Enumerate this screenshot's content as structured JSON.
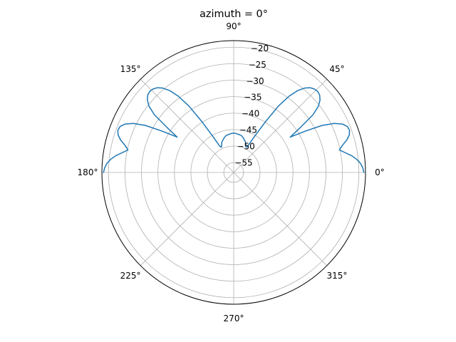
{
  "chart_data": {
    "type": "line",
    "projection": "polar",
    "title": "azimuth = 0°",
    "angle_ticks": [
      {
        "deg": 0,
        "label": "0°"
      },
      {
        "deg": 45,
        "label": "45°"
      },
      {
        "deg": 90,
        "label": "90°"
      },
      {
        "deg": 135,
        "label": "135°"
      },
      {
        "deg": 180,
        "label": "180°"
      },
      {
        "deg": 225,
        "label": "225°"
      },
      {
        "deg": 270,
        "label": "270°"
      },
      {
        "deg": 315,
        "label": "315°"
      }
    ],
    "radial_ticks": [
      {
        "value": -55,
        "label": "−55"
      },
      {
        "value": -50,
        "label": "−50"
      },
      {
        "value": -45,
        "label": "−45"
      },
      {
        "value": -40,
        "label": "−40"
      },
      {
        "value": -35,
        "label": "−35"
      },
      {
        "value": -30,
        "label": "−30"
      },
      {
        "value": -25,
        "label": "−25"
      },
      {
        "value": -20,
        "label": "−20"
      }
    ],
    "rlim": [
      -58,
      -18
    ],
    "theta_range_deg": [
      0,
      180
    ],
    "grid": true,
    "series": [
      {
        "color": "#1f77b4",
        "theta_deg": [
          0,
          2,
          4,
          6,
          8,
          10,
          12,
          14,
          16,
          18,
          20,
          22,
          24,
          26,
          28,
          30,
          32,
          34,
          36,
          38,
          40,
          42,
          44,
          46,
          48,
          50,
          52,
          54,
          56,
          58,
          60,
          62,
          64,
          66,
          68,
          70,
          72,
          74,
          76,
          78,
          80,
          82,
          84,
          86,
          88,
          90,
          92,
          94,
          96,
          98,
          100,
          102,
          104,
          106,
          108,
          110,
          112,
          114,
          116,
          118,
          120,
          122,
          124,
          126,
          128,
          130,
          132,
          134,
          136,
          138,
          140,
          142,
          144,
          146,
          148,
          150,
          152,
          154,
          156,
          158,
          160,
          162,
          164,
          166,
          168,
          170,
          172,
          174,
          176,
          178,
          180
        ],
        "r": [
          -18.5,
          -18.8,
          -19.4,
          -20.4,
          -21.8,
          -23.6,
          -25.2,
          -24.0,
          -22.3,
          -21.1,
          -20.6,
          -20.8,
          -21.9,
          -24.1,
          -27.6,
          -33.0,
          -37.8,
          -33.6,
          -28.3,
          -25.4,
          -23.8,
          -22.9,
          -22.6,
          -22.8,
          -23.4,
          -24.6,
          -26.5,
          -29.4,
          -33.7,
          -40.0,
          -45.5,
          -49.0,
          -49.5,
          -49.0,
          -48.3,
          -47.9,
          -47.6,
          -47.2,
          -46.9,
          -46.6,
          -46.5,
          -46.4,
          -46.3,
          -46.2,
          -46.1,
          -46.1,
          -46.1,
          -46.2,
          -46.3,
          -46.4,
          -46.5,
          -46.6,
          -46.9,
          -47.2,
          -47.6,
          -47.9,
          -48.3,
          -49.0,
          -49.5,
          -49.0,
          -45.5,
          -40.0,
          -33.7,
          -29.4,
          -26.5,
          -24.6,
          -23.4,
          -22.8,
          -22.6,
          -22.9,
          -23.8,
          -25.4,
          -28.3,
          -33.6,
          -37.8,
          -33.0,
          -27.6,
          -24.1,
          -21.9,
          -20.8,
          -20.6,
          -21.1,
          -22.3,
          -24.0,
          -25.2,
          -23.6,
          -21.8,
          -20.4,
          -19.4,
          -18.8,
          -18.5
        ]
      }
    ]
  }
}
